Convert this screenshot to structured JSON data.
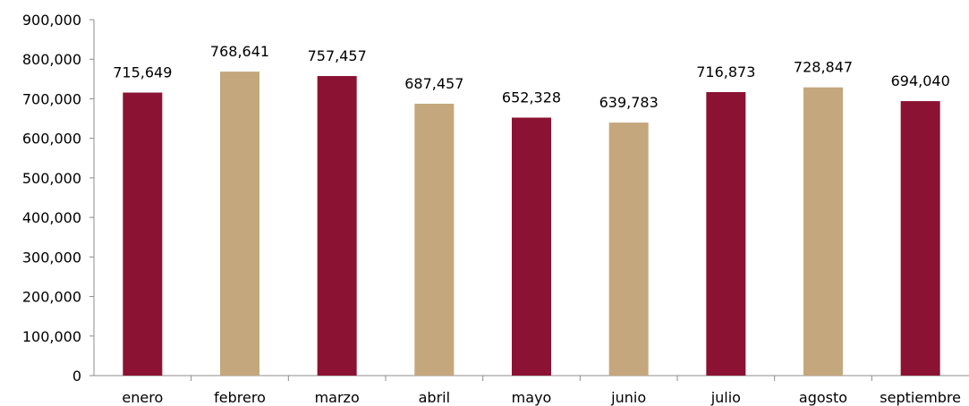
{
  "chart_data": {
    "type": "bar",
    "title": "",
    "xlabel": "",
    "ylabel": "",
    "ylim": [
      0,
      900000
    ],
    "yticks": [
      0,
      100000,
      200000,
      300000,
      400000,
      500000,
      600000,
      700000,
      800000,
      900000
    ],
    "ytick_labels": [
      "0",
      "100,000",
      "200,000",
      "300,000",
      "400,000",
      "500,000",
      "600,000",
      "700,000",
      "800,000",
      "900,000"
    ],
    "grid": false,
    "legend": "none",
    "categories": [
      "enero",
      "febrero",
      "marzo",
      "abril",
      "mayo",
      "junio",
      "julio",
      "agosto",
      "septiembre"
    ],
    "values": [
      715649,
      768641,
      757457,
      687457,
      652328,
      639783,
      716873,
      728847,
      694040
    ],
    "data_labels": [
      "715,649",
      "768,641",
      "757,457",
      "687,457",
      "652,328",
      "639,783",
      "716,873",
      "728,847",
      "694,040"
    ],
    "bar_colors": [
      "#8b1232",
      "#c4a77d",
      "#8b1232",
      "#c4a77d",
      "#8b1232",
      "#c4a77d",
      "#8b1232",
      "#c4a77d",
      "#8b1232"
    ]
  }
}
